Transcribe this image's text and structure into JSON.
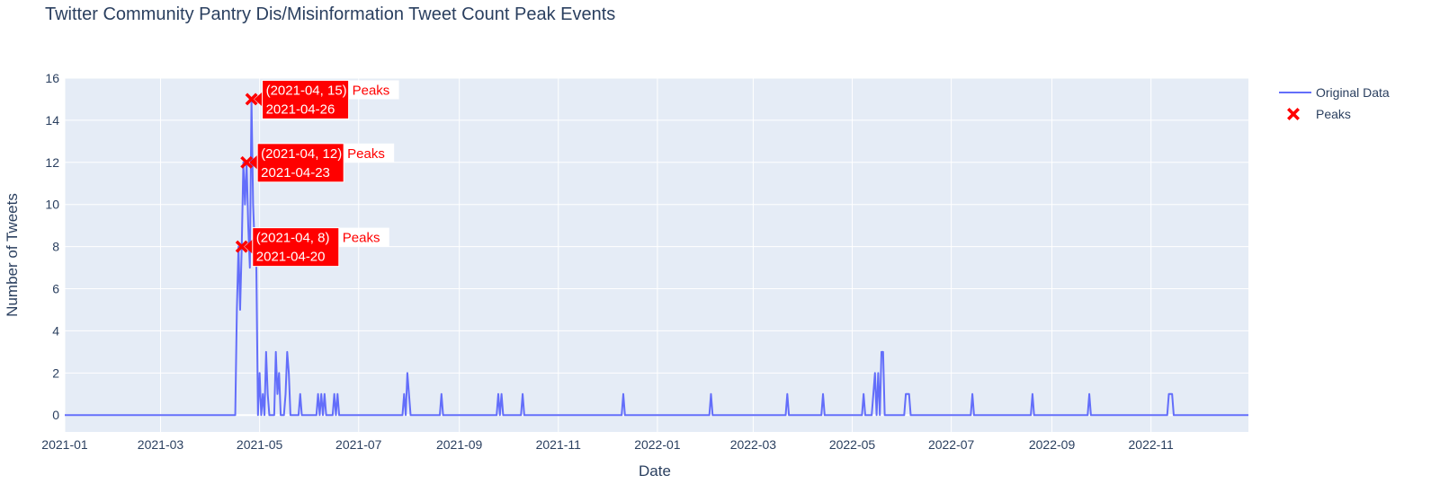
{
  "chart_data": {
    "type": "line",
    "title": "Twitter Community Pantry Dis/Misinformation Tweet Count Peak Events",
    "xlabel": "Date",
    "ylabel": "Number of Tweets",
    "xlim": [
      "2021-01-01",
      "2022-12-31"
    ],
    "ylim": [
      -0.8,
      16
    ],
    "x_ticks": [
      "2021-01",
      "2021-03",
      "2021-05",
      "2021-07",
      "2021-09",
      "2021-11",
      "2022-01",
      "2022-03",
      "2022-05",
      "2022-07",
      "2022-09",
      "2022-11"
    ],
    "y_ticks": [
      0,
      2,
      4,
      6,
      8,
      10,
      12,
      14,
      16
    ],
    "grid": true,
    "legend_position": "top-right",
    "colors": {
      "line": "#636efa",
      "peaks": "#ff0000",
      "plot_bg": "#e5ecf6",
      "grid": "#ffffff"
    },
    "series": [
      {
        "name": "Original Data",
        "type": "line",
        "points": [
          [
            "2021-01-01",
            0
          ],
          [
            "2021-04-16",
            0
          ],
          [
            "2021-04-17",
            5
          ],
          [
            "2021-04-18",
            8
          ],
          [
            "2021-04-19",
            5
          ],
          [
            "2021-04-20",
            8
          ],
          [
            "2021-04-21",
            12
          ],
          [
            "2021-04-22",
            10
          ],
          [
            "2021-04-23",
            12
          ],
          [
            "2021-04-24",
            9
          ],
          [
            "2021-04-25",
            7
          ],
          [
            "2021-04-26",
            15
          ],
          [
            "2021-04-27",
            10
          ],
          [
            "2021-04-28",
            8
          ],
          [
            "2021-04-29",
            7
          ],
          [
            "2021-04-30",
            0
          ],
          [
            "2021-05-01",
            2
          ],
          [
            "2021-05-02",
            0
          ],
          [
            "2021-05-03",
            1
          ],
          [
            "2021-05-04",
            0
          ],
          [
            "2021-05-05",
            3
          ],
          [
            "2021-05-06",
            1
          ],
          [
            "2021-05-07",
            0
          ],
          [
            "2021-05-10",
            0
          ],
          [
            "2021-05-11",
            3
          ],
          [
            "2021-05-12",
            1
          ],
          [
            "2021-05-13",
            2
          ],
          [
            "2021-05-14",
            0
          ],
          [
            "2021-05-16",
            0
          ],
          [
            "2021-05-17",
            1
          ],
          [
            "2021-05-18",
            3
          ],
          [
            "2021-05-19",
            2
          ],
          [
            "2021-05-20",
            0
          ],
          [
            "2021-05-25",
            0
          ],
          [
            "2021-05-26",
            1
          ],
          [
            "2021-05-27",
            0
          ],
          [
            "2021-06-05",
            0
          ],
          [
            "2021-06-06",
            1
          ],
          [
            "2021-06-07",
            0
          ],
          [
            "2021-06-08",
            1
          ],
          [
            "2021-06-09",
            0
          ],
          [
            "2021-06-10",
            1
          ],
          [
            "2021-06-11",
            0
          ],
          [
            "2021-06-15",
            0
          ],
          [
            "2021-06-16",
            1
          ],
          [
            "2021-06-17",
            0
          ],
          [
            "2021-06-18",
            1
          ],
          [
            "2021-06-19",
            0
          ],
          [
            "2021-07-28",
            0
          ],
          [
            "2021-07-29",
            1
          ],
          [
            "2021-07-30",
            0
          ],
          [
            "2021-07-31",
            2
          ],
          [
            "2021-08-01",
            1
          ],
          [
            "2021-08-02",
            0
          ],
          [
            "2021-08-20",
            0
          ],
          [
            "2021-08-21",
            1
          ],
          [
            "2021-08-22",
            0
          ],
          [
            "2021-09-24",
            0
          ],
          [
            "2021-09-25",
            1
          ],
          [
            "2021-09-26",
            0
          ],
          [
            "2021-09-27",
            1
          ],
          [
            "2021-09-28",
            0
          ],
          [
            "2021-10-09",
            0
          ],
          [
            "2021-10-10",
            1
          ],
          [
            "2021-10-11",
            0
          ],
          [
            "2021-12-10",
            0
          ],
          [
            "2021-12-11",
            1
          ],
          [
            "2021-12-12",
            0
          ],
          [
            "2022-02-02",
            0
          ],
          [
            "2022-02-03",
            1
          ],
          [
            "2022-02-04",
            0
          ],
          [
            "2022-03-21",
            0
          ],
          [
            "2022-03-22",
            1
          ],
          [
            "2022-03-23",
            0
          ],
          [
            "2022-04-12",
            0
          ],
          [
            "2022-04-13",
            1
          ],
          [
            "2022-04-14",
            0
          ],
          [
            "2022-05-07",
            0
          ],
          [
            "2022-05-08",
            1
          ],
          [
            "2022-05-09",
            0
          ],
          [
            "2022-05-13",
            0
          ],
          [
            "2022-05-15",
            2
          ],
          [
            "2022-05-16",
            0
          ],
          [
            "2022-05-17",
            2
          ],
          [
            "2022-05-18",
            0
          ],
          [
            "2022-05-19",
            3
          ],
          [
            "2022-05-20",
            3
          ],
          [
            "2022-05-21",
            0
          ],
          [
            "2022-06-02",
            0
          ],
          [
            "2022-06-03",
            1
          ],
          [
            "2022-06-05",
            1
          ],
          [
            "2022-06-06",
            0
          ],
          [
            "2022-07-13",
            0
          ],
          [
            "2022-07-14",
            1
          ],
          [
            "2022-07-15",
            0
          ],
          [
            "2022-08-19",
            0
          ],
          [
            "2022-08-20",
            1
          ],
          [
            "2022-08-21",
            0
          ],
          [
            "2022-09-23",
            0
          ],
          [
            "2022-09-24",
            1
          ],
          [
            "2022-09-25",
            0
          ],
          [
            "2022-11-11",
            0
          ],
          [
            "2022-11-12",
            1
          ],
          [
            "2022-11-14",
            1
          ],
          [
            "2022-11-15",
            0
          ],
          [
            "2022-12-31",
            0
          ]
        ]
      },
      {
        "name": "Peaks",
        "type": "scatter",
        "marker": "x",
        "points": [
          [
            "2021-04-20",
            8
          ],
          [
            "2021-04-23",
            12
          ],
          [
            "2021-04-26",
            15
          ]
        ]
      }
    ],
    "annotations": [
      {
        "x": "2021-04-20",
        "y": 8,
        "line1": "(2021-04, 8)",
        "line2": "2021-04-20",
        "name": "Peaks"
      },
      {
        "x": "2021-04-23",
        "y": 12,
        "line1": "(2021-04, 12)",
        "line2": "2021-04-23",
        "name": "Peaks"
      },
      {
        "x": "2021-04-26",
        "y": 15,
        "line1": "(2021-04, 15)",
        "line2": "2021-04-26",
        "name": "Peaks"
      }
    ]
  }
}
